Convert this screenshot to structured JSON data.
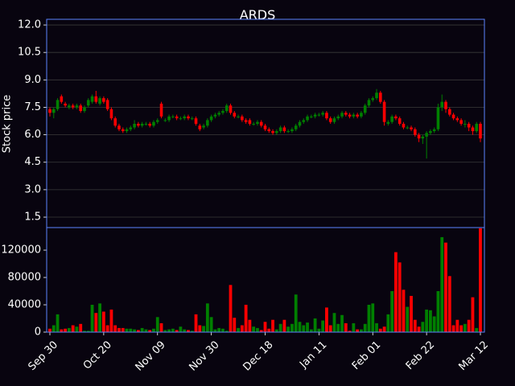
{
  "chart_data": {
    "type": "candlestick",
    "title": "ARDS",
    "ylabel": "Stock price",
    "up_color": "#008000",
    "down_color": "#ff0000",
    "grid": true,
    "ylim": [
      0.93,
      12.31
    ],
    "yticks": [
      1.5,
      {
        "value": 3,
        "label": "3.0"
      },
      4.5,
      {
        "value": 6,
        "label": "6.0"
      },
      7.5,
      {
        "value": 9,
        "label": "9.0"
      },
      10.5,
      {
        "value": 12,
        "label": "12.0"
      }
    ],
    "volume_ylim": [
      0,
      153000
    ],
    "volume_yticks": [
      0,
      40000,
      80000,
      120000
    ],
    "categories": [
      "Sep 30",
      null,
      null,
      null,
      null,
      null,
      null,
      null,
      null,
      null,
      null,
      null,
      null,
      null,
      "Oct 20",
      null,
      null,
      null,
      null,
      null,
      null,
      null,
      null,
      null,
      null,
      null,
      null,
      null,
      "Nov 09",
      null,
      null,
      null,
      null,
      null,
      null,
      null,
      null,
      null,
      null,
      null,
      null,
      null,
      "Nov 30",
      null,
      null,
      null,
      null,
      null,
      null,
      null,
      null,
      null,
      null,
      null,
      null,
      null,
      "Dec 18",
      null,
      null,
      null,
      null,
      null,
      null,
      null,
      null,
      null,
      null,
      null,
      null,
      null,
      "Jan 11",
      null,
      null,
      null,
      null,
      null,
      null,
      null,
      null,
      null,
      null,
      null,
      null,
      null,
      "Feb 01",
      null,
      null,
      null,
      null,
      null,
      null,
      null,
      null,
      null,
      null,
      null,
      null,
      null,
      "Feb 22",
      null,
      null,
      null,
      null,
      null,
      null,
      null,
      null,
      null,
      null,
      null,
      null,
      null,
      "Mar 12"
    ],
    "open": [
      7.4,
      7.2,
      7.4,
      8.1,
      7.7,
      7.5,
      7.6,
      7.5,
      7.6,
      7.3,
      7.6,
      7.8,
      8.1,
      7.7,
      8.0,
      7.9,
      7.4,
      6.9,
      6.5,
      6.3,
      6.2,
      6.3,
      6.4,
      6.6,
      6.5,
      6.6,
      6.6,
      6.5,
      6.7,
      7.7,
      6.8,
      6.8,
      7.0,
      7.0,
      6.9,
      6.9,
      7.0,
      6.9,
      6.9,
      6.5,
      6.4,
      6.5,
      6.8,
      7.0,
      7.1,
      7.2,
      7.3,
      7.6,
      7.2,
      7.0,
      7.0,
      6.8,
      6.8,
      6.6,
      6.6,
      6.7,
      6.5,
      6.3,
      6.2,
      6.1,
      6.2,
      6.4,
      6.2,
      6.2,
      6.3,
      6.5,
      6.7,
      6.8,
      7.0,
      7.0,
      7.1,
      7.1,
      7.2,
      6.9,
      6.7,
      6.9,
      7.0,
      7.2,
      7.1,
      7.0,
      7.1,
      7.0,
      7.2,
      7.6,
      7.9,
      8.0,
      8.3,
      7.8,
      6.6,
      6.7,
      7.0,
      6.9,
      6.6,
      6.4,
      6.4,
      6.3,
      6.0,
      5.8,
      5.9,
      6.1,
      6.2,
      6.3,
      7.5,
      7.8,
      7.4,
      7.1,
      6.9,
      6.8,
      6.6,
      6.6,
      6.4,
      6.2,
      6.6
    ],
    "close": [
      7.2,
      7.4,
      7.9,
      7.8,
      7.6,
      7.6,
      7.5,
      7.6,
      7.3,
      7.5,
      7.9,
      8.1,
      7.8,
      8.0,
      7.8,
      7.4,
      6.9,
      6.5,
      6.3,
      6.2,
      6.3,
      6.4,
      6.6,
      6.5,
      6.6,
      6.6,
      6.5,
      6.7,
      6.8,
      7.0,
      6.8,
      7.0,
      7.0,
      6.9,
      6.9,
      7.0,
      6.9,
      6.9,
      6.6,
      6.3,
      6.5,
      6.8,
      7.0,
      7.1,
      7.2,
      7.3,
      7.6,
      7.2,
      7.0,
      7.0,
      6.8,
      6.7,
      6.6,
      6.6,
      6.7,
      6.5,
      6.3,
      6.2,
      6.1,
      6.2,
      6.4,
      6.2,
      6.2,
      6.3,
      6.5,
      6.7,
      6.8,
      7.0,
      7.0,
      7.1,
      7.1,
      7.2,
      6.9,
      6.7,
      6.9,
      7.0,
      7.2,
      7.1,
      7.0,
      7.1,
      7.0,
      7.2,
      7.6,
      7.9,
      8.0,
      8.3,
      7.8,
      6.7,
      6.7,
      7.0,
      6.9,
      6.6,
      6.4,
      6.4,
      6.3,
      6.0,
      5.8,
      5.9,
      6.1,
      6.2,
      6.3,
      7.5,
      7.8,
      7.4,
      7.1,
      6.9,
      6.8,
      6.6,
      6.6,
      6.4,
      6.2,
      6.6,
      5.8
    ],
    "high": [
      7.5,
      7.5,
      8.0,
      8.2,
      7.8,
      7.7,
      7.7,
      7.7,
      7.7,
      7.6,
      8.0,
      8.2,
      8.4,
      8.1,
      8.1,
      8.0,
      7.5,
      7.0,
      6.6,
      6.4,
      6.4,
      6.5,
      6.8,
      6.7,
      6.7,
      6.7,
      6.7,
      6.8,
      6.9,
      7.8,
      6.9,
      7.1,
      7.1,
      7.1,
      7.0,
      7.1,
      7.1,
      7.0,
      7.0,
      6.6,
      6.6,
      6.9,
      7.1,
      7.2,
      7.3,
      7.4,
      7.7,
      7.7,
      7.3,
      7.1,
      7.1,
      6.9,
      6.9,
      6.7,
      6.8,
      6.8,
      6.6,
      6.4,
      6.3,
      6.3,
      6.5,
      6.5,
      6.3,
      6.4,
      6.6,
      6.8,
      6.9,
      7.1,
      7.1,
      7.2,
      7.2,
      7.3,
      7.3,
      7.0,
      7.0,
      7.1,
      7.3,
      7.3,
      7.2,
      7.2,
      7.2,
      7.3,
      7.7,
      8.0,
      8.1,
      8.5,
      8.4,
      7.9,
      6.8,
      7.1,
      7.1,
      7.0,
      6.7,
      6.5,
      6.5,
      6.4,
      6.1,
      6.0,
      6.2,
      6.3,
      6.4,
      7.7,
      8.2,
      7.9,
      7.5,
      7.2,
      7.0,
      6.9,
      6.8,
      6.7,
      6.5,
      6.7,
      6.7
    ],
    "low": [
      7.0,
      6.9,
      7.3,
      7.7,
      7.5,
      7.4,
      7.4,
      7.4,
      7.2,
      7.2,
      7.5,
      7.7,
      7.7,
      7.6,
      7.7,
      7.3,
      6.8,
      6.4,
      6.2,
      6.1,
      6.1,
      6.2,
      6.3,
      6.4,
      6.4,
      6.5,
      6.4,
      6.4,
      6.6,
      6.9,
      6.7,
      6.7,
      6.9,
      6.8,
      6.8,
      6.8,
      6.8,
      6.8,
      6.5,
      6.2,
      6.3,
      6.4,
      6.7,
      6.9,
      7.0,
      7.1,
      7.2,
      7.1,
      6.9,
      6.9,
      6.7,
      6.6,
      6.5,
      6.5,
      6.5,
      6.4,
      6.2,
      6.1,
      6.0,
      6.0,
      6.1,
      6.1,
      6.1,
      6.1,
      6.2,
      6.4,
      6.6,
      6.7,
      6.9,
      6.9,
      7.0,
      7.0,
      6.8,
      6.6,
      6.6,
      6.8,
      6.9,
      7.0,
      6.9,
      6.9,
      6.9,
      6.9,
      7.1,
      7.5,
      7.8,
      7.9,
      7.7,
      6.5,
      6.5,
      6.6,
      6.8,
      6.5,
      6.3,
      6.3,
      6.2,
      5.9,
      5.6,
      5.5,
      4.7,
      6.0,
      6.1,
      6.2,
      7.3,
      7.2,
      7.0,
      6.8,
      6.7,
      6.5,
      6.4,
      6.2,
      6.0,
      6.1,
      5.6
    ],
    "volume": [
      5000,
      10000,
      26000,
      4000,
      5000,
      6000,
      10000,
      8000,
      12000,
      2000,
      2000,
      40000,
      28000,
      42000,
      30000,
      10000,
      33000,
      10000,
      6000,
      6000,
      5000,
      5000,
      4000,
      3000,
      6000,
      4000,
      3000,
      5000,
      22000,
      13000,
      3000,
      4000,
      5000,
      3000,
      8000,
      4000,
      3000,
      2000,
      26000,
      10000,
      9000,
      42000,
      22000,
      4000,
      6000,
      5000,
      2000,
      69000,
      21000,
      6000,
      10000,
      40000,
      18000,
      8000,
      6000,
      3000,
      15000,
      5000,
      18000,
      4000,
      12000,
      18000,
      8000,
      12000,
      55000,
      15000,
      10000,
      14000,
      4000,
      20000,
      5000,
      17000,
      36000,
      10000,
      28000,
      12000,
      25000,
      13000,
      2000,
      13000,
      4000,
      4000,
      12000,
      40000,
      42000,
      13000,
      5000,
      8000,
      26000,
      60000,
      117000,
      102000,
      62000,
      37000,
      53000,
      18000,
      8000,
      15000,
      33000,
      32000,
      23000,
      60000,
      139000,
      131000,
      82000,
      10000,
      18000,
      10000,
      12000,
      18000,
      51000,
      6000,
      152000
    ]
  }
}
